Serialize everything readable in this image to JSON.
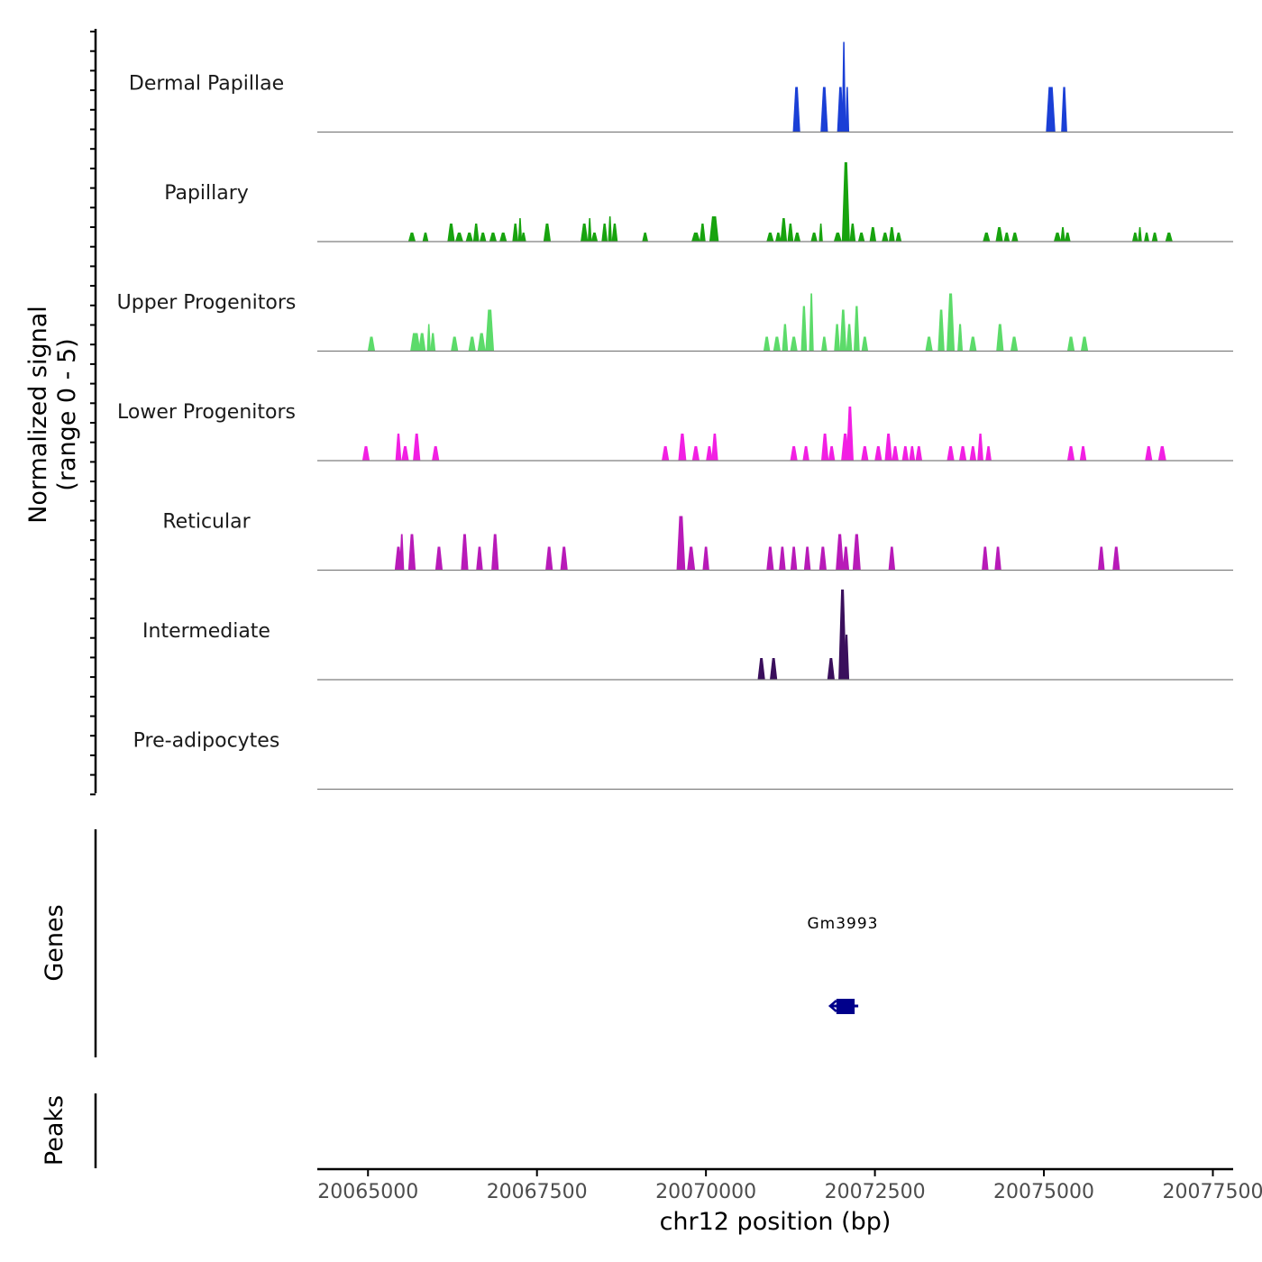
{
  "chart_data": {
    "type": "area",
    "title": "",
    "ylabel_line1": "Normalized signal",
    "ylabel_line2": "(range 0 - 5)",
    "xlabel": "chr12 position (bp)",
    "xlim": [
      20064250,
      20077800
    ],
    "ylim": [
      0,
      5
    ],
    "x_ticks": [
      20065000,
      20067500,
      20070000,
      20072500,
      20075000,
      20077500
    ],
    "x_tick_labels": [
      "20065000",
      "20067500",
      "20070000",
      "20072500",
      "20075000",
      "20077500"
    ],
    "tracks": [
      {
        "name": "Dermal Papillae",
        "color": "#1a3fd6",
        "peaks": [
          [
            20071340,
            2.5,
            110
          ],
          [
            20071750,
            2.5,
            110
          ],
          [
            20071990,
            2.5,
            100
          ],
          [
            20072040,
            5,
            60
          ],
          [
            20072090,
            2.5,
            60
          ],
          [
            20075100,
            2.5,
            140
          ],
          [
            20075300,
            2.5,
            90
          ]
        ]
      },
      {
        "name": "Papillary",
        "color": "#17a30e",
        "peaks": [
          [
            20065650,
            0.5,
            110
          ],
          [
            20065850,
            0.5,
            90
          ],
          [
            20066230,
            1,
            110
          ],
          [
            20066350,
            0.5,
            120
          ],
          [
            20066500,
            0.5,
            110
          ],
          [
            20066600,
            1,
            90
          ],
          [
            20066700,
            0.5,
            100
          ],
          [
            20066850,
            0.5,
            110
          ],
          [
            20067000,
            0.5,
            110
          ],
          [
            20067180,
            1,
            90
          ],
          [
            20067250,
            1.3,
            60
          ],
          [
            20067300,
            0.5,
            80
          ],
          [
            20067650,
            1,
            110
          ],
          [
            20068200,
            1,
            110
          ],
          [
            20068280,
            1.3,
            60
          ],
          [
            20068350,
            0.5,
            100
          ],
          [
            20068500,
            1,
            90
          ],
          [
            20068580,
            1.4,
            60
          ],
          [
            20068650,
            1,
            90
          ],
          [
            20069100,
            0.5,
            90
          ],
          [
            20069850,
            0.5,
            130
          ],
          [
            20069950,
            1,
            90
          ],
          [
            20070120,
            1.4,
            140
          ],
          [
            20070950,
            0.5,
            110
          ],
          [
            20071070,
            0.5,
            90
          ],
          [
            20071150,
            1.3,
            100
          ],
          [
            20071250,
            1,
            90
          ],
          [
            20071350,
            0.5,
            100
          ],
          [
            20071600,
            0.5,
            100
          ],
          [
            20071700,
            1,
            60
          ],
          [
            20071950,
            0.5,
            120
          ],
          [
            20072070,
            4.4,
            120
          ],
          [
            20072170,
            1,
            90
          ],
          [
            20072300,
            0.5,
            100
          ],
          [
            20072470,
            0.8,
            100
          ],
          [
            20072650,
            0.5,
            100
          ],
          [
            20072750,
            0.8,
            90
          ],
          [
            20072850,
            0.5,
            90
          ],
          [
            20074150,
            0.5,
            110
          ],
          [
            20074340,
            0.8,
            110
          ],
          [
            20074450,
            0.5,
            90
          ],
          [
            20074570,
            0.5,
            100
          ],
          [
            20075200,
            0.5,
            110
          ],
          [
            20075280,
            0.8,
            70
          ],
          [
            20075350,
            0.5,
            90
          ],
          [
            20076350,
            0.5,
            90
          ],
          [
            20076420,
            0.8,
            60
          ],
          [
            20076520,
            0.5,
            80
          ],
          [
            20076640,
            0.5,
            90
          ],
          [
            20076850,
            0.5,
            110
          ]
        ]
      },
      {
        "name": "Upper Progenitors",
        "color": "#5cdb6a",
        "peaks": [
          [
            20065050,
            0.8,
            110
          ],
          [
            20065700,
            1,
            150
          ],
          [
            20065800,
            1,
            110
          ],
          [
            20065900,
            1.5,
            60
          ],
          [
            20065960,
            1,
            80
          ],
          [
            20066280,
            0.8,
            110
          ],
          [
            20066540,
            0.8,
            110
          ],
          [
            20066680,
            1,
            120
          ],
          [
            20066800,
            2.3,
            130
          ],
          [
            20070900,
            0.8,
            100
          ],
          [
            20071050,
            0.8,
            110
          ],
          [
            20071170,
            1.5,
            90
          ],
          [
            20071300,
            0.8,
            110
          ],
          [
            20071450,
            2.5,
            90
          ],
          [
            20071560,
            3.2,
            70
          ],
          [
            20071750,
            0.8,
            90
          ],
          [
            20071940,
            1.5,
            90
          ],
          [
            20072030,
            2.3,
            100
          ],
          [
            20072120,
            1.5,
            90
          ],
          [
            20072230,
            2.5,
            90
          ],
          [
            20072350,
            0.8,
            100
          ],
          [
            20073300,
            0.8,
            110
          ],
          [
            20073480,
            2.3,
            100
          ],
          [
            20073620,
            3.2,
            120
          ],
          [
            20073760,
            1.5,
            80
          ],
          [
            20073950,
            0.8,
            110
          ],
          [
            20074350,
            1.5,
            110
          ],
          [
            20074560,
            0.8,
            110
          ],
          [
            20075400,
            0.8,
            110
          ],
          [
            20075600,
            0.8,
            110
          ]
        ]
      },
      {
        "name": "Lower Progenitors",
        "color": "#f21fe3",
        "peaks": [
          [
            20064970,
            0.8,
            110
          ],
          [
            20065450,
            1.5,
            90
          ],
          [
            20065550,
            0.8,
            110
          ],
          [
            20065720,
            1.5,
            110
          ],
          [
            20066000,
            0.8,
            110
          ],
          [
            20069400,
            0.8,
            110
          ],
          [
            20069650,
            1.5,
            120
          ],
          [
            20069850,
            0.8,
            110
          ],
          [
            20070050,
            0.8,
            100
          ],
          [
            20070130,
            1.5,
            100
          ],
          [
            20071300,
            0.8,
            110
          ],
          [
            20071480,
            0.8,
            100
          ],
          [
            20071760,
            1.5,
            110
          ],
          [
            20071860,
            0.8,
            100
          ],
          [
            20072060,
            1.5,
            120
          ],
          [
            20072130,
            3,
            110
          ],
          [
            20072350,
            0.8,
            110
          ],
          [
            20072550,
            0.8,
            110
          ],
          [
            20072700,
            1.5,
            110
          ],
          [
            20072800,
            0.8,
            100
          ],
          [
            20072950,
            0.8,
            100
          ],
          [
            20073050,
            0.8,
            90
          ],
          [
            20073150,
            0.8,
            100
          ],
          [
            20073620,
            0.8,
            110
          ],
          [
            20073800,
            0.8,
            110
          ],
          [
            20073950,
            0.8,
            100
          ],
          [
            20074060,
            1.5,
            90
          ],
          [
            20074180,
            0.8,
            90
          ],
          [
            20075400,
            0.8,
            110
          ],
          [
            20075580,
            0.8,
            100
          ],
          [
            20076550,
            0.8,
            110
          ],
          [
            20076750,
            0.8,
            120
          ]
        ]
      },
      {
        "name": "Reticular",
        "color": "#b81ab8",
        "peaks": [
          [
            20065450,
            1.3,
            110
          ],
          [
            20065500,
            2,
            70
          ],
          [
            20065650,
            2,
            110
          ],
          [
            20066050,
            1.3,
            110
          ],
          [
            20066430,
            2,
            110
          ],
          [
            20066650,
            1.3,
            100
          ],
          [
            20066880,
            2,
            110
          ],
          [
            20067680,
            1.3,
            110
          ],
          [
            20067900,
            1.3,
            110
          ],
          [
            20069630,
            3,
            130
          ],
          [
            20069780,
            1.3,
            120
          ],
          [
            20070000,
            1.3,
            100
          ],
          [
            20070950,
            1.3,
            110
          ],
          [
            20071130,
            1.3,
            100
          ],
          [
            20071300,
            1.3,
            100
          ],
          [
            20071500,
            1.3,
            100
          ],
          [
            20071730,
            1.3,
            110
          ],
          [
            20071980,
            2,
            120
          ],
          [
            20072070,
            1.3,
            100
          ],
          [
            20072230,
            2,
            120
          ],
          [
            20072750,
            1.3,
            100
          ],
          [
            20074130,
            1.3,
            100
          ],
          [
            20074320,
            1.3,
            100
          ],
          [
            20075850,
            1.3,
            100
          ],
          [
            20076070,
            1.3,
            110
          ]
        ]
      },
      {
        "name": "Intermediate",
        "color": "#3a0f5c",
        "peaks": [
          [
            20070820,
            1.2,
            110
          ],
          [
            20071000,
            1.2,
            110
          ],
          [
            20071850,
            1.2,
            110
          ],
          [
            20072020,
            5,
            120
          ],
          [
            20072080,
            2.5,
            80
          ]
        ]
      },
      {
        "name": "Pre-adipocytes",
        "color": "#f5d07a",
        "peaks": []
      }
    ],
    "genes_label": "Genes",
    "peaks_label": "Peaks",
    "genes": [
      {
        "name": "Gm3993",
        "start": 20071850,
        "end": 20072200,
        "strand": "-",
        "color": "#00008b"
      }
    ],
    "peak_regions": []
  }
}
